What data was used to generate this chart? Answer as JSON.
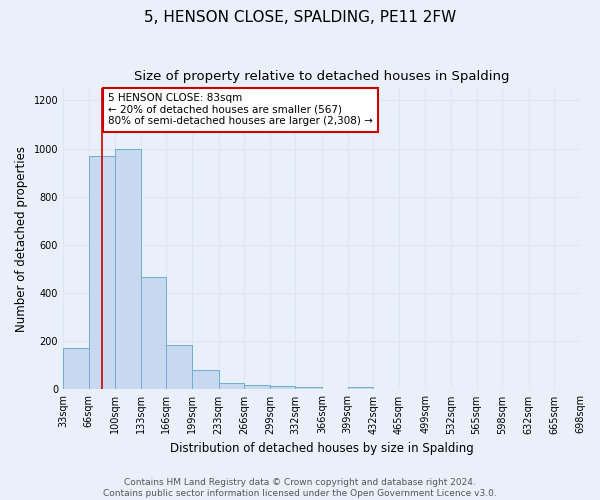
{
  "title": "5, HENSON CLOSE, SPALDING, PE11 2FW",
  "subtitle": "Size of property relative to detached houses in Spalding",
  "xlabel": "Distribution of detached houses by size in Spalding",
  "ylabel": "Number of detached properties",
  "bar_lefts": [
    33,
    66,
    100,
    133,
    166,
    199,
    233,
    266,
    299,
    332,
    366,
    399,
    432,
    465,
    499,
    532,
    565,
    598,
    632,
    665
  ],
  "bar_widths": [
    33,
    34,
    33,
    33,
    33,
    34,
    33,
    33,
    33,
    34,
    33,
    33,
    33,
    34,
    33,
    33,
    33,
    34,
    33,
    33
  ],
  "bar_heights": [
    170,
    970,
    1000,
    465,
    185,
    80,
    25,
    20,
    15,
    10,
    0,
    12,
    0,
    0,
    0,
    0,
    0,
    0,
    0,
    0
  ],
  "bar_color": "#c8d9ef",
  "bar_edge_color": "#6aafd4",
  "property_size": 83,
  "property_line_color": "#cc0000",
  "annotation_line1": "5 HENSON CLOSE: 83sqm",
  "annotation_line2": "← 20% of detached houses are smaller (567)",
  "annotation_line3": "80% of semi-detached houses are larger (2,308) →",
  "annotation_box_color": "#ffffff",
  "annotation_box_edge": "#cc0000",
  "xlim_left": 33,
  "xlim_right": 698,
  "ylim": [
    0,
    1250
  ],
  "yticks": [
    0,
    200,
    400,
    600,
    800,
    1000,
    1200
  ],
  "tick_labels": [
    "33sqm",
    "66sqm",
    "100sqm",
    "133sqm",
    "166sqm",
    "199sqm",
    "233sqm",
    "266sqm",
    "299sqm",
    "332sqm",
    "366sqm",
    "399sqm",
    "432sqm",
    "465sqm",
    "499sqm",
    "532sqm",
    "565sqm",
    "598sqm",
    "632sqm",
    "665sqm",
    "698sqm"
  ],
  "tick_positions": [
    33,
    66,
    100,
    133,
    166,
    199,
    233,
    266,
    299,
    332,
    366,
    399,
    432,
    465,
    499,
    532,
    565,
    598,
    632,
    665,
    698
  ],
  "footer_text": "Contains HM Land Registry data © Crown copyright and database right 2024.\nContains public sector information licensed under the Open Government Licence v3.0.",
  "bg_color": "#eaf0f9",
  "grid_color": "#dce6f5",
  "title_fontsize": 11,
  "subtitle_fontsize": 9.5,
  "label_fontsize": 8.5,
  "tick_fontsize": 7,
  "annot_fontsize": 7.5,
  "footer_fontsize": 6.5
}
